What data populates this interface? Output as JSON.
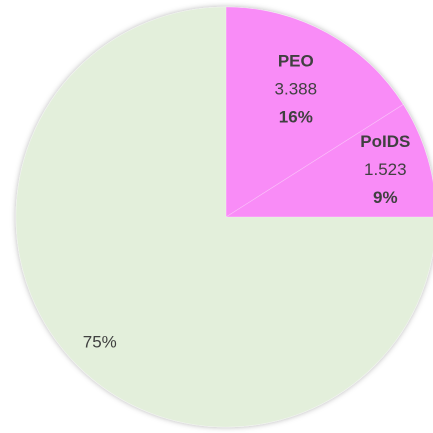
{
  "chart_data": {
    "type": "pie",
    "categories": [
      "PEO",
      "PoIDS",
      null
    ],
    "amounts": [
      3.388,
      1.523,
      null
    ],
    "values": [
      16,
      9,
      75
    ],
    "value_labels": [
      "16%",
      "9%",
      "75%"
    ],
    "colors": [
      "#f98cf7",
      "#f98cf7",
      "#e3efdb"
    ]
  }
}
